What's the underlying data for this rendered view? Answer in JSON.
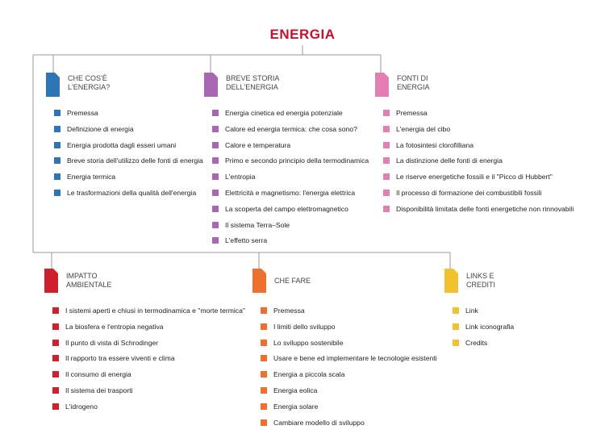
{
  "title": "ENERGIA",
  "sections": [
    {
      "heading": [
        "CHE COS'È",
        "L'ENERGIA?"
      ],
      "color": "#2e75b6",
      "items": [
        "Premessa",
        "Definizione di energia",
        "Energia prodotta dagli esseri umani",
        "Breve storia dell'utilizzo delle fonti di energia",
        "Energia termica",
        "Le trasformazioni della qualità dell'energia"
      ]
    },
    {
      "heading": [
        "BREVE STORIA",
        "DELL'ENERGIA"
      ],
      "color": "#a866b3",
      "items": [
        "Energia cinetica ed energia potenziale",
        "Calore ed energia termica: che cosa sono?",
        "Calore e temperatura",
        "Primo e secondo principio della termodinamica",
        "L'entropia",
        "Elettricità e magnetismo: l'energia elettrica",
        "La scoperta del campo elettromagnetico",
        "Il sistema Terra–Sole",
        "L'effetto serra"
      ]
    },
    {
      "heading": [
        "FONTI DI",
        "ENERGIA"
      ],
      "color": "#e37fb5",
      "items": [
        "Premessa",
        "L'energia del cibo",
        "La fotosintesi clorofilliana",
        "La distinzione delle fonti di energia",
        "Le riserve energetiche fossili e il \"Picco di Hubbert\"",
        "Il processo di formazione dei combustibili fossili",
        "Disponibilità limitata delle fonti energetiche non rinnovabili"
      ]
    },
    {
      "heading": [
        "IMPATTO",
        "AMBIENTALE"
      ],
      "color": "#d0202d",
      "items": [
        "I sistemi aperti e chiusi in termodinamica e \"morte termica\"",
        "La biosfera e l'entropia negativa",
        "Il punto di vista di Schrodinger",
        "Il rapporto tra essere viventi e clima",
        "Il consumo di energia",
        "Il sistema dei trasporti",
        "L'idrogeno"
      ]
    },
    {
      "heading": [
        "CHE FARE"
      ],
      "color": "#ef6f2e",
      "items": [
        "Premessa",
        "I limiti dello sviluppo",
        "Lo sviluppo sostenibile",
        "Usare e bene ed implementare le tecnologie esistenti",
        "Energia a piccola scala",
        "Energia eolica",
        "Energia solare",
        "Cambiare modello di sviluppo"
      ]
    },
    {
      "heading": [
        "LINKS E",
        "CREDITI"
      ],
      "color": "#f2c12e",
      "items": [
        "Link",
        "Link iconografia",
        "Credits"
      ]
    }
  ]
}
